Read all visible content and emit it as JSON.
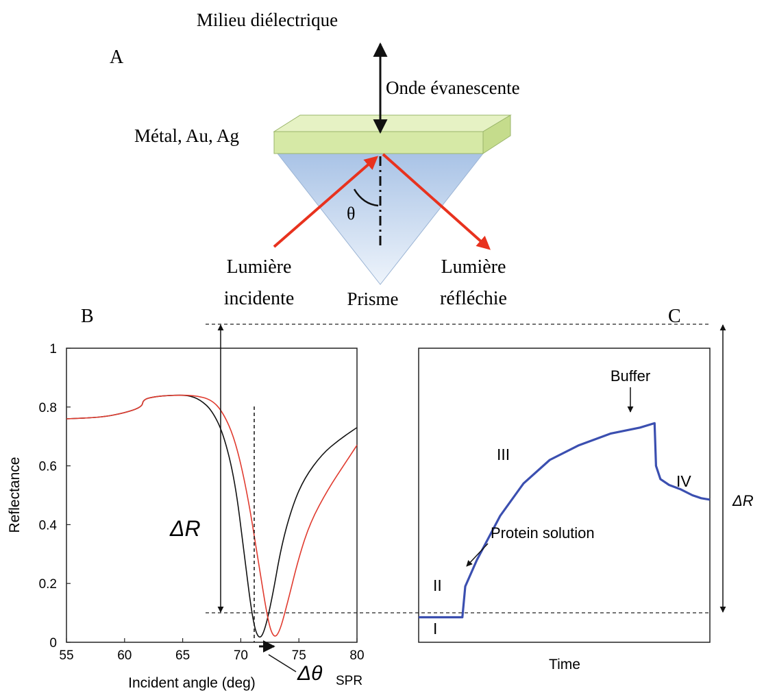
{
  "panel_a": {
    "label": "A",
    "dielectric_label": "Milieu diélectrique",
    "evanescent_label": "Onde évanescente",
    "metal_label": "Métal, Au, Ag",
    "angle_symbol": "θ",
    "incident_label_1": "Lumière",
    "incident_label_2": "incidente",
    "reflected_label_1": "Lumière",
    "reflected_label_2": "réfléchie",
    "prism_label": "Prisme",
    "colors": {
      "metal": "#d8eaa8",
      "prism": "#b8cfe8",
      "beam": "#e8321e"
    }
  },
  "chart_data": [
    {
      "panel": "B",
      "type": "line",
      "xlabel": "Incident angle (deg)",
      "ylabel": "Reflectance",
      "xlim": [
        55,
        80
      ],
      "ylim": [
        0,
        1
      ],
      "x_ticks": [
        "55",
        "60",
        "65",
        "70",
        "75",
        "80"
      ],
      "y_ticks": [
        "0",
        "0.2",
        "0.4",
        "0.6",
        "0.8",
        "1"
      ],
      "series": [
        {
          "color": "#111111",
          "points": [
            [
              55,
              0.76
            ],
            [
              58,
              0.765
            ],
            [
              60,
              0.78
            ],
            [
              61.5,
              0.8
            ],
            [
              61.6,
              0.825
            ],
            [
              62.5,
              0.835
            ],
            [
              64,
              0.84
            ],
            [
              65.5,
              0.84
            ],
            [
              66.5,
              0.825
            ],
            [
              67.5,
              0.79
            ],
            [
              68.5,
              0.71
            ],
            [
              69.5,
              0.55
            ],
            [
              70.3,
              0.3
            ],
            [
              71,
              0.08
            ],
            [
              71.5,
              0.01
            ],
            [
              72,
              0.03
            ],
            [
              72.7,
              0.15
            ],
            [
              73.5,
              0.33
            ],
            [
              74.5,
              0.47
            ],
            [
              75.5,
              0.56
            ],
            [
              77,
              0.64
            ],
            [
              78.5,
              0.69
            ],
            [
              80,
              0.73
            ]
          ]
        },
        {
          "color": "#e03a2e",
          "points": [
            [
              55,
              0.76
            ],
            [
              58,
              0.765
            ],
            [
              60,
              0.78
            ],
            [
              61.5,
              0.8
            ],
            [
              61.6,
              0.825
            ],
            [
              62.5,
              0.835
            ],
            [
              64,
              0.84
            ],
            [
              66,
              0.84
            ],
            [
              67.5,
              0.825
            ],
            [
              68.5,
              0.78
            ],
            [
              69.5,
              0.69
            ],
            [
              70.5,
              0.52
            ],
            [
              71.5,
              0.28
            ],
            [
              72.3,
              0.08
            ],
            [
              72.8,
              0.015
            ],
            [
              73.3,
              0.03
            ],
            [
              74,
              0.13
            ],
            [
              75,
              0.29
            ],
            [
              76,
              0.41
            ],
            [
              77.5,
              0.52
            ],
            [
              79,
              0.61
            ],
            [
              80,
              0.67
            ]
          ]
        }
      ],
      "annotations": {
        "delta_r": "ΔR",
        "delta_theta": "Δθ",
        "delta_theta_sub": "SPR"
      }
    },
    {
      "panel": "C",
      "type": "line",
      "xlabel": "Time",
      "series": [
        {
          "color": "#3b4fb0",
          "points": [
            [
              0,
              0.085
            ],
            [
              0.15,
              0.085
            ],
            [
              0.16,
              0.19
            ],
            [
              0.2,
              0.28
            ],
            [
              0.28,
              0.43
            ],
            [
              0.36,
              0.54
            ],
            [
              0.45,
              0.62
            ],
            [
              0.55,
              0.67
            ],
            [
              0.66,
              0.71
            ],
            [
              0.76,
              0.73
            ],
            [
              0.81,
              0.745
            ],
            [
              0.815,
              0.6
            ],
            [
              0.83,
              0.555
            ],
            [
              0.86,
              0.535
            ],
            [
              0.9,
              0.52
            ],
            [
              0.94,
              0.5
            ],
            [
              0.97,
              0.49
            ],
            [
              1.0,
              0.485
            ]
          ]
        }
      ],
      "annotations": {
        "buffer": "Buffer",
        "protein": "Protein solution",
        "phase_1": "I",
        "phase_2": "II",
        "phase_3": "III",
        "phase_4": "IV",
        "delta_r": "ΔR"
      }
    }
  ]
}
